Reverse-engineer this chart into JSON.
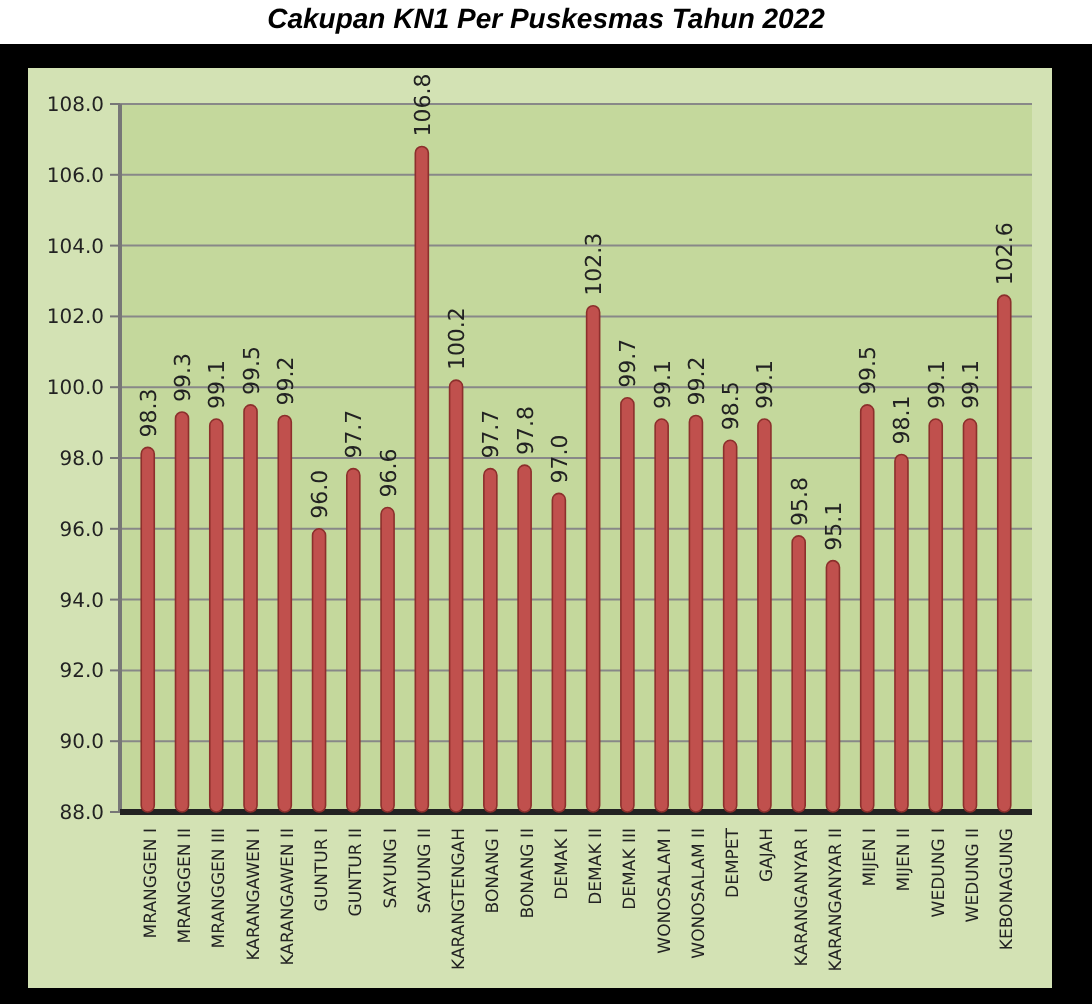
{
  "chart_data": {
    "type": "bar",
    "title": "Cakupan KN1 Per Puskesmas Tahun 2022",
    "categories": [
      "MRANGGEN I",
      "MRANGGEN II",
      "MRANGGEN III",
      "KARANGAWEN I",
      "KARANGAWEN II",
      "GUNTUR I",
      "GUNTUR II",
      "SAYUNG I",
      "SAYUNG II",
      "KARANGTENGAH",
      "BONANG I",
      "BONANG II",
      "DEMAK I",
      "DEMAK II",
      "DEMAK III",
      "WONOSALAM I",
      "WONOSALAM II",
      "DEMPET",
      "GAJAH",
      "KARANGANYAR I",
      "KARANGANYAR II",
      "MIJEN I",
      "MIJEN II",
      "WEDUNG I",
      "WEDUNG II",
      "KEBONAGUNG"
    ],
    "values": [
      98.3,
      99.3,
      99.1,
      99.5,
      99.2,
      96.0,
      97.7,
      96.6,
      106.8,
      100.2,
      97.7,
      97.8,
      97.0,
      102.3,
      99.7,
      99.1,
      99.2,
      98.5,
      99.1,
      95.8,
      95.1,
      99.5,
      98.1,
      99.1,
      99.1,
      102.6
    ],
    "color": "#c0504d",
    "ylim": [
      88,
      108
    ],
    "yticks": [
      {
        "value": 88,
        "label": "88.0"
      },
      {
        "value": 90,
        "label": "90.0"
      },
      {
        "value": 92,
        "label": "92.0"
      },
      {
        "value": 94,
        "label": "94.0"
      },
      {
        "value": 96,
        "label": "96.0"
      },
      {
        "value": 98,
        "label": "98.0"
      },
      {
        "value": 100,
        "label": "100.0"
      },
      {
        "value": 102,
        "label": "102.0"
      },
      {
        "value": 104,
        "label": "104.0"
      },
      {
        "value": 106,
        "label": "106.0"
      },
      {
        "value": 108,
        "label": "108.0"
      }
    ],
    "value_labels": [
      "98.3",
      "99.3",
      "99.1",
      "99.5",
      "99.2",
      "96.0",
      "97.7",
      "96.6",
      "106.8",
      "100.2",
      "97.7",
      "97.8",
      "97.0",
      "102.3",
      "99.7",
      "99.1",
      "99.2",
      "98.5",
      "99.1",
      "95.8",
      "95.1",
      "99.5",
      "98.1",
      "99.1",
      "99.1",
      "102.6"
    ],
    "grid": "y"
  }
}
